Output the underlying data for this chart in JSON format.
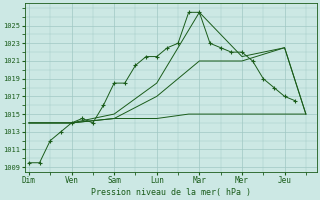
{
  "xlabel": "Pression niveau de la mer( hPa )",
  "background_color": "#cce8e4",
  "plot_bg_color": "#cce8e4",
  "grid_color": "#a0c8c4",
  "line_color": "#1a5c1a",
  "ylim": [
    1008.5,
    1027.5
  ],
  "yticks": [
    1009,
    1011,
    1013,
    1015,
    1017,
    1019,
    1021,
    1023,
    1025
  ],
  "day_labels": [
    "Dim",
    "Ven",
    "Sam",
    "Lun",
    "Mar",
    "Mer",
    "Jeu"
  ],
  "day_positions": [
    0,
    2,
    4,
    6,
    8,
    10,
    12
  ],
  "num_cols": 14,
  "series_main_x": [
    0,
    0.5,
    1,
    1.5,
    2,
    2.5,
    3,
    3.5,
    4,
    4.5,
    5,
    5.5,
    6,
    6.5,
    7,
    7.5,
    8,
    8.5,
    9,
    9.5,
    10,
    10.5,
    11,
    11.5,
    12,
    12.5
  ],
  "series_main_y": [
    1009.5,
    1009.5,
    1012,
    1013,
    1014,
    1014.5,
    1014,
    1016,
    1018.5,
    1018.5,
    1020.5,
    1021.5,
    1021.5,
    1022.5,
    1023,
    1026.5,
    1026.5,
    1023,
    1022.5,
    1022,
    1022,
    1021,
    1019,
    1018,
    1017,
    1016.5
  ],
  "series_flat_x": [
    0,
    2,
    4,
    6,
    7.5,
    8,
    10,
    12,
    13
  ],
  "series_flat_y": [
    1014,
    1014,
    1014.5,
    1014.5,
    1015,
    1015,
    1015,
    1015,
    1015
  ],
  "series_mid_x": [
    0,
    2,
    4,
    6,
    8,
    10,
    12,
    13
  ],
  "series_mid_y": [
    1014,
    1014,
    1014.5,
    1017,
    1021,
    1021,
    1022.5,
    1015
  ],
  "series_high_x": [
    0,
    2,
    4,
    6,
    8,
    10,
    12,
    13
  ],
  "series_high_y": [
    1014,
    1014,
    1015,
    1018.5,
    1026.5,
    1021.5,
    1022.5,
    1015
  ]
}
